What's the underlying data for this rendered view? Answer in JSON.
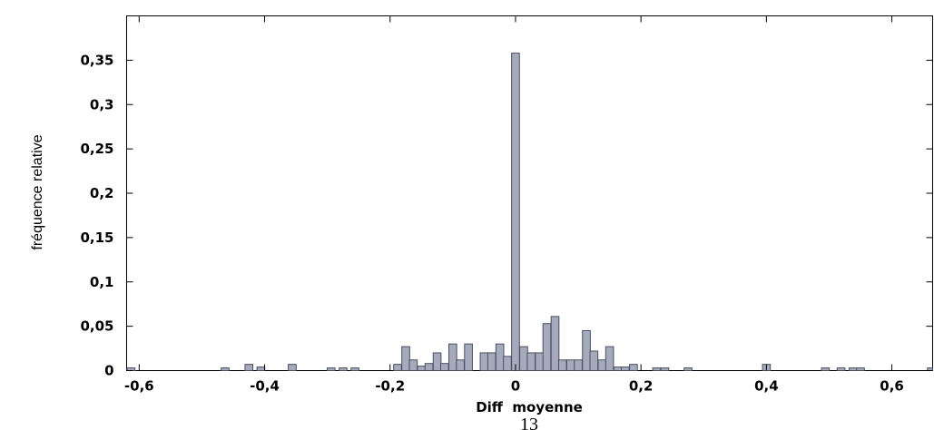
{
  "page_number": "13",
  "chart_data": {
    "type": "bar",
    "xlabel": "Diff  moyenne",
    "ylabel": "fréquence relative",
    "xlim": [
      -0.62,
      0.665
    ],
    "ylim": [
      0,
      0.4
    ],
    "bar_width": 0.0125,
    "bar_color": "#a5abbd",
    "bar_edge_color": "#4b4f5e",
    "grid": false,
    "xticks": [
      {
        "value": -0.6,
        "label": "-0,6"
      },
      {
        "value": -0.4,
        "label": "-0,4"
      },
      {
        "value": -0.2,
        "label": "-0,2"
      },
      {
        "value": 0,
        "label": "0"
      },
      {
        "value": 0.2,
        "label": "0,2"
      },
      {
        "value": 0.4,
        "label": "0,4"
      },
      {
        "value": 0.6,
        "label": "0,6"
      }
    ],
    "yticks": [
      {
        "value": 0,
        "label": "0"
      },
      {
        "value": 0.05,
        "label": "0,05"
      },
      {
        "value": 0.1,
        "label": "0,1"
      },
      {
        "value": 0.15,
        "label": "0,15"
      },
      {
        "value": 0.2,
        "label": "0,2"
      },
      {
        "value": 0.25,
        "label": "0,25"
      },
      {
        "value": 0.3,
        "label": "0,3"
      },
      {
        "value": 0.35,
        "label": "0,35"
      }
    ],
    "x": [
      -0.613,
      -0.463,
      -0.425,
      -0.406,
      -0.356,
      -0.294,
      -0.275,
      -0.256,
      -0.188,
      -0.175,
      -0.163,
      -0.15,
      -0.138,
      -0.125,
      -0.113,
      -0.1,
      -0.088,
      -0.075,
      -0.05,
      -0.038,
      -0.025,
      -0.013,
      0,
      0.013,
      0.025,
      0.038,
      0.05,
      0.063,
      0.075,
      0.088,
      0.1,
      0.113,
      0.125,
      0.138,
      0.15,
      0.163,
      0.175,
      0.188,
      0.225,
      0.238,
      0.275,
      0.4,
      0.494,
      0.519,
      0.538,
      0.55,
      0.663
    ],
    "values": [
      0.003,
      0.003,
      0.007,
      0.004,
      0.007,
      0.003,
      0.003,
      0.003,
      0.007,
      0.027,
      0.012,
      0.005,
      0.008,
      0.02,
      0.008,
      0.03,
      0.012,
      0.03,
      0.02,
      0.02,
      0.03,
      0.016,
      0.358,
      0.027,
      0.02,
      0.02,
      0.053,
      0.061,
      0.012,
      0.012,
      0.012,
      0.045,
      0.022,
      0.012,
      0.027,
      0.004,
      0.004,
      0.007,
      0.003,
      0.003,
      0.003,
      0.007,
      0.003,
      0.003,
      0.003,
      0.003,
      0.003
    ]
  }
}
